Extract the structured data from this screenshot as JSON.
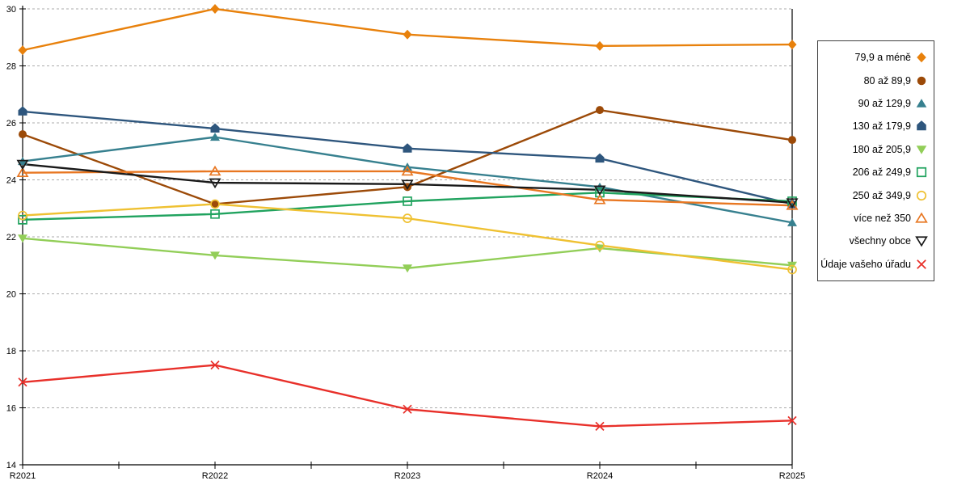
{
  "chart_data": {
    "type": "line",
    "title": "",
    "xlabel": "",
    "ylabel": "",
    "categories": [
      "R2021",
      "R2022",
      "R2023",
      "R2024",
      "R2025"
    ],
    "series": [
      {
        "name": "79,9 a méně",
        "marker": "diamond",
        "filled": true,
        "color": "#E8810C",
        "values": [
          28.55,
          30.0,
          29.1,
          28.7,
          28.75
        ]
      },
      {
        "name": "80 až 89,9",
        "marker": "circle",
        "filled": true,
        "color": "#9C4A08",
        "values": [
          25.6,
          23.15,
          23.75,
          26.45,
          25.4
        ]
      },
      {
        "name": "90 až 129,9",
        "marker": "triangle-up",
        "filled": true,
        "color": "#37808F",
        "values": [
          24.65,
          25.5,
          24.45,
          23.75,
          22.5
        ]
      },
      {
        "name": "130 až 179,9",
        "marker": "pentagon",
        "filled": true,
        "color": "#2E567D",
        "values": [
          26.4,
          25.8,
          25.1,
          24.75,
          23.15
        ]
      },
      {
        "name": "180 až 205,9",
        "marker": "triangle-down",
        "filled": true,
        "color": "#92CE58",
        "values": [
          21.95,
          21.35,
          20.9,
          21.6,
          21.0
        ]
      },
      {
        "name": "206 až 249,9",
        "marker": "square",
        "filled": false,
        "color": "#21A35F",
        "values": [
          22.6,
          22.8,
          23.25,
          23.55,
          23.25
        ]
      },
      {
        "name": "250 až 349,9",
        "marker": "circle",
        "filled": false,
        "color": "#EFC132",
        "values": [
          22.75,
          23.15,
          22.65,
          21.7,
          20.85
        ]
      },
      {
        "name": "více než 350",
        "marker": "triangle-up",
        "filled": false,
        "color": "#E87722",
        "values": [
          24.25,
          24.3,
          24.3,
          23.3,
          23.1
        ]
      },
      {
        "name": "všechny obce",
        "marker": "triangle-down",
        "filled": false,
        "color": "#1A1A1A",
        "values": [
          24.55,
          23.9,
          23.85,
          23.65,
          23.2
        ]
      },
      {
        "name": "Údaje vašeho úřadu",
        "marker": "x",
        "filled": false,
        "color": "#E8302A",
        "values": [
          16.9,
          17.5,
          15.95,
          15.35,
          15.55
        ]
      }
    ],
    "ylim": [
      14,
      30
    ],
    "ytick_step": 2,
    "yticks": [
      14,
      16,
      18,
      20,
      22,
      24,
      26,
      28,
      30
    ],
    "grid": "horizontal-dashed",
    "gridline_color": "#ABABAB",
    "axis_color": "#000000",
    "legend_position": "right"
  }
}
